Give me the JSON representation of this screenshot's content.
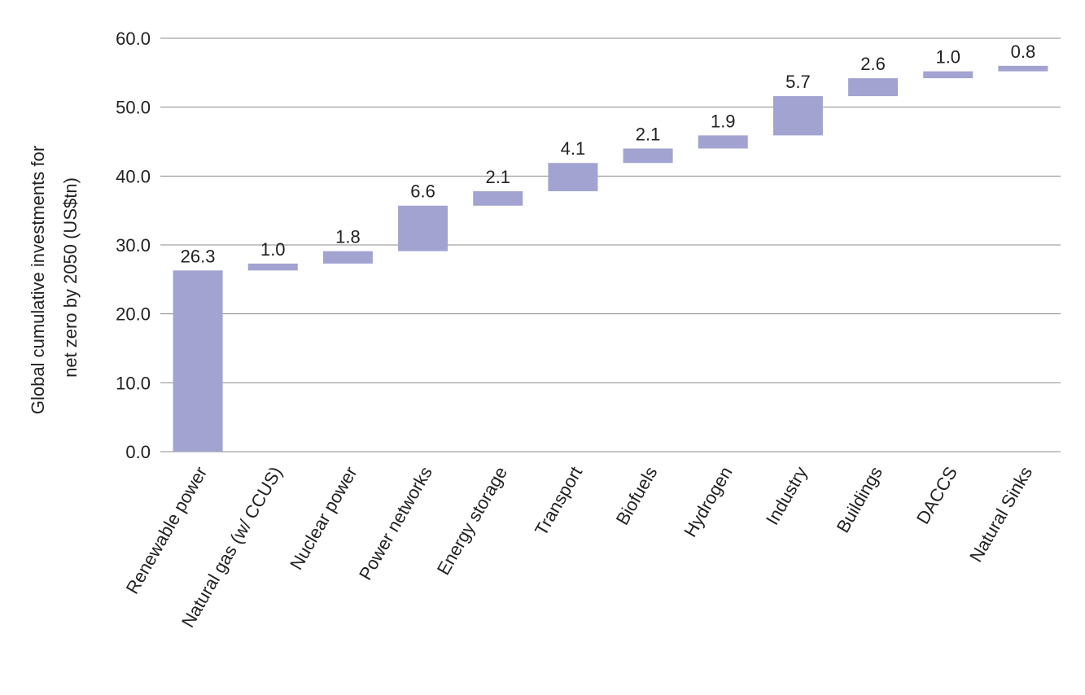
{
  "chart_data": {
    "type": "bar",
    "subtype": "waterfall",
    "ylabel_lines": [
      "Global cumulative investments for",
      "net zero by 2050 (US$tn)"
    ],
    "ylim": [
      0,
      60
    ],
    "yticks": [
      "0.0",
      "10.0",
      "20.0",
      "30.0",
      "40.0",
      "50.0",
      "60.0"
    ],
    "ytick_values": [
      0,
      10,
      20,
      30,
      40,
      50,
      60
    ],
    "grid": true,
    "categories": [
      "Renewable power",
      "Natural gas (w/ CCUS)",
      "Nuclear power",
      "Power networks",
      "Energy storage",
      "Transport",
      "Biofuels",
      "Hydrogen",
      "Industry",
      "Buildings",
      "DACCS",
      "Natural Sinks"
    ],
    "values": [
      26.3,
      1.0,
      1.8,
      6.6,
      2.1,
      4.1,
      2.1,
      1.9,
      5.7,
      2.6,
      1.0,
      0.8
    ],
    "labels": [
      "26.3",
      "1.0",
      "1.8",
      "6.6",
      "2.1",
      "4.1",
      "2.1",
      "1.9",
      "5.7",
      "2.6",
      "1.0",
      "0.8"
    ],
    "bar_color": "#a2a3d1"
  }
}
